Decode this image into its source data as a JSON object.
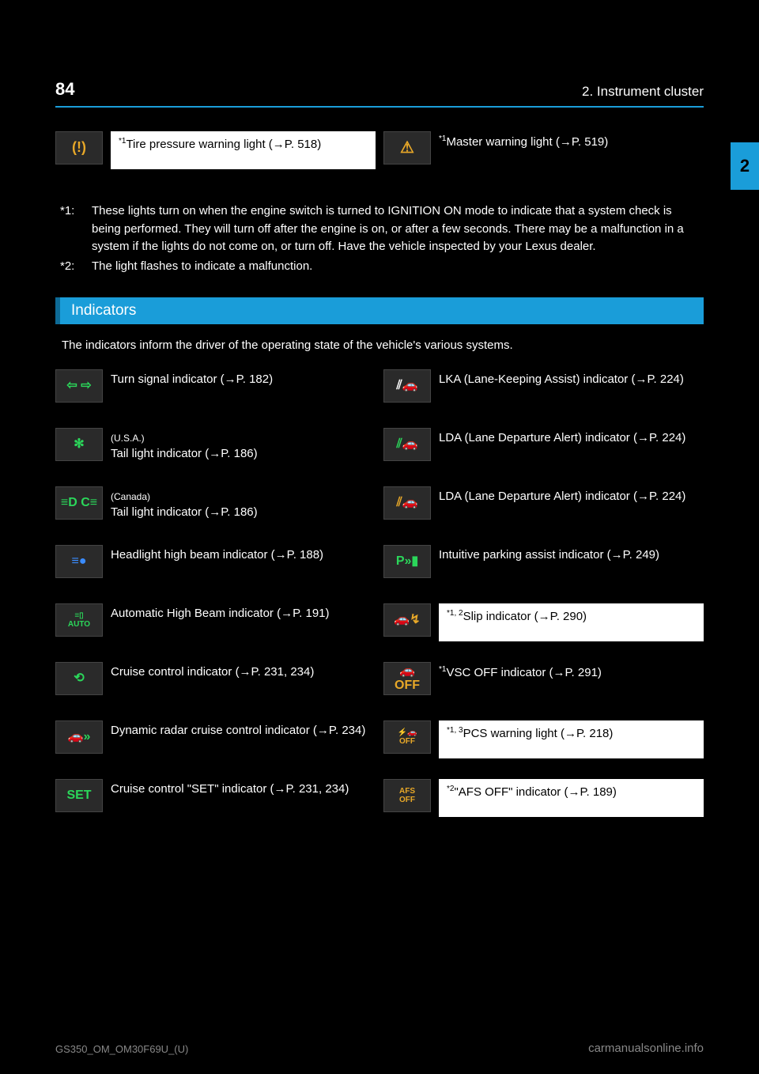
{
  "header": {
    "page_number": "84",
    "section_path": "2. Instrument cluster"
  },
  "chapter_tab": "2",
  "top_rows": {
    "left": {
      "sup": "*1",
      "text": "Tire pressure warning light (→P. 518)",
      "icon": {
        "name": "tire-pressure-icon",
        "glyph": "(!)",
        "color": "#e8a828"
      }
    },
    "right": {
      "sup": "*1",
      "text": "Master warning light (→P. 519)",
      "icon": {
        "name": "master-warning-icon",
        "glyph": "⚠",
        "color": "#e8a828"
      }
    }
  },
  "notes": [
    {
      "marker": "*1:",
      "text": "These lights turn on when the engine switch is turned to IGNITION ON mode to indicate that a system check is being performed. They will turn off after the engine is on, or after a few seconds. There may be a malfunction in a system if the lights do not come on, or turn off. Have the vehicle inspected by your Lexus dealer."
    },
    {
      "marker": "*2:",
      "text": "The light flashes to indicate a malfunction."
    }
  ],
  "indicators_heading": "Indicators",
  "indicators_intro": "The indicators inform the driver of the operating state of the vehicle's various systems.",
  "left_col": [
    {
      "icon": {
        "name": "turn-signal-icon",
        "glyph": "⇦ ⇨",
        "color": "#2bd65a"
      },
      "text": "Turn signal indicator (→P. 182)"
    },
    {
      "icon": {
        "name": "tail-light-icon",
        "glyph": "✻",
        "color": "#2bd65a"
      },
      "sup_before": "(U.S.A.)",
      "text": "Tail light indicator (→P. 186)"
    },
    {
      "icon": {
        "name": "tail-light-ca-icon",
        "glyph": "≡D C≡",
        "color": "#2bd65a"
      },
      "sup_before": "(Canada)",
      "text": "Tail light indicator (→P. 186)"
    },
    {
      "icon": {
        "name": "high-beam-icon",
        "glyph": "≡●",
        "color": "#3a8cff"
      },
      "text": "Headlight high beam indicator (→P. 188)"
    },
    {
      "icon": {
        "name": "auto-high-beam-icon",
        "glyph": "≡▯\nAUTO",
        "color": "#2bd65a"
      },
      "text": "Automatic High Beam indicator (→P. 191)"
    },
    {
      "icon": {
        "name": "cruise-icon",
        "glyph": "⟲",
        "color": "#2bd65a"
      },
      "text": "Cruise control indicator (→P. 231, 234)"
    },
    {
      "icon": {
        "name": "radar-cruise-icon",
        "glyph": "🚗»",
        "color": "#2bd65a"
      },
      "text": "Dynamic radar cruise control indicator (→P. 234)"
    },
    {
      "icon": {
        "name": "cruise-set-icon",
        "glyph": "SET",
        "color": "#2bd65a"
      },
      "text": "Cruise control \"SET\" indicator (→P. 231, 234)"
    }
  ],
  "right_col": [
    {
      "icon": {
        "name": "lka-white-icon",
        "glyph": "⫽🚗",
        "color": "#ffffff"
      },
      "text": "LKA (Lane-Keeping Assist) indicator (→P. 224)"
    },
    {
      "icon": {
        "name": "lda-green-icon",
        "glyph": "⫽🚗",
        "color": "#2bd65a"
      },
      "text": "LDA (Lane Departure Alert) indicator (→P. 224)"
    },
    {
      "icon": {
        "name": "lda-amber-icon",
        "glyph": "⫽🚗",
        "color": "#e8a828"
      },
      "text": "LDA (Lane Departure Alert) indicator (→P. 224)"
    },
    {
      "icon": {
        "name": "parking-assist-icon",
        "glyph": "P»▮",
        "color": "#2bd65a"
      },
      "text": "Intuitive parking assist indicator (→P. 249)"
    },
    {
      "icon": {
        "name": "slip-icon",
        "glyph": "🚗↯",
        "color": "#e8a828"
      },
      "sup": "*1, 2",
      "text": "Slip indicator (→P. 290)",
      "white_bg": true
    },
    {
      "icon": {
        "name": "vsc-off-icon",
        "glyph": "🚗\nOFF",
        "color": "#e8a828"
      },
      "sup": "*1",
      "text": "VSC OFF indicator (→P. 291)"
    },
    {
      "icon": {
        "name": "pcs-off-icon",
        "glyph": "⚡🚗\nOFF",
        "color": "#e8a828"
      },
      "sup": "*1, 3",
      "text": "PCS warning light (→P. 218)",
      "white_bg": true
    },
    {
      "icon": {
        "name": "afs-off-icon",
        "glyph": "AFS\nOFF",
        "color": "#e8a828"
      },
      "sup": "*2",
      "text": "\"AFS OFF\" indicator (→P. 189)",
      "white_bg": true
    }
  ],
  "footer_left": "GS350_OM_OM30F69U_(U)",
  "watermark": "carmanualsonline.info"
}
